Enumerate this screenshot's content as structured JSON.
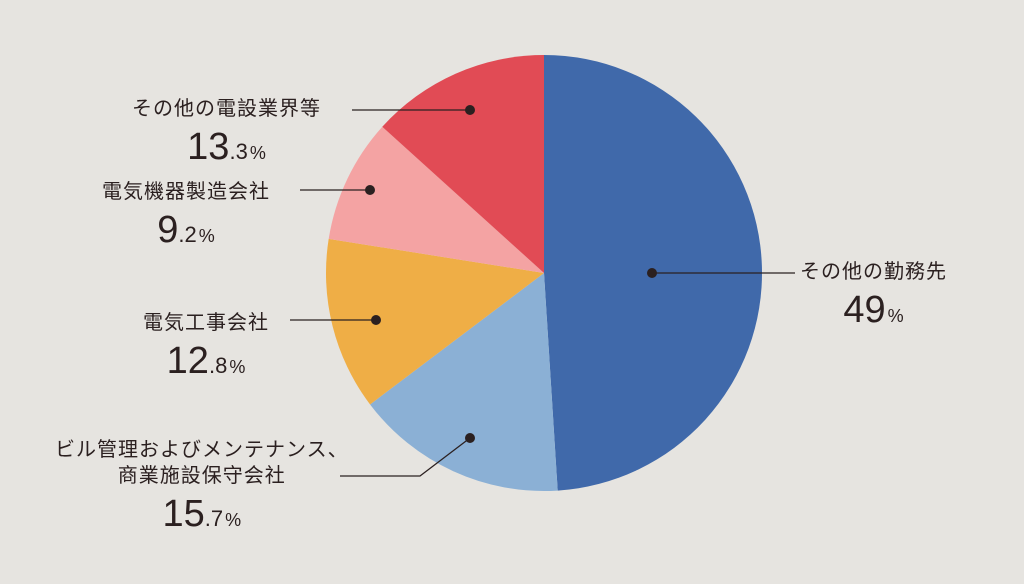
{
  "chart_data": {
    "type": "pie",
    "slices": [
      {
        "label": "その他の勤務先",
        "value": 49,
        "int": "49",
        "dec": "",
        "unit": "%",
        "color": "#4069aa"
      },
      {
        "label": "ビル管理およびメンテナンス、商業施設保守会社",
        "line1": "ビル管理およびメンテナンス、",
        "line2": "商業施設保守会社",
        "value": 15.7,
        "int": "15",
        "dec": ".7",
        "unit": "%",
        "color": "#8bb0d5"
      },
      {
        "label": "電気工事会社",
        "value": 12.8,
        "int": "12",
        "dec": ".8",
        "unit": "%",
        "color": "#efae46"
      },
      {
        "label": "電気機器製造会社",
        "value": 9.2,
        "int": "9",
        "dec": ".2",
        "unit": "%",
        "color": "#f4a3a3"
      },
      {
        "label": "その他の電設業界等",
        "value": 13.3,
        "int": "13",
        "dec": ".3",
        "unit": "%",
        "color": "#e14b55"
      }
    ]
  }
}
